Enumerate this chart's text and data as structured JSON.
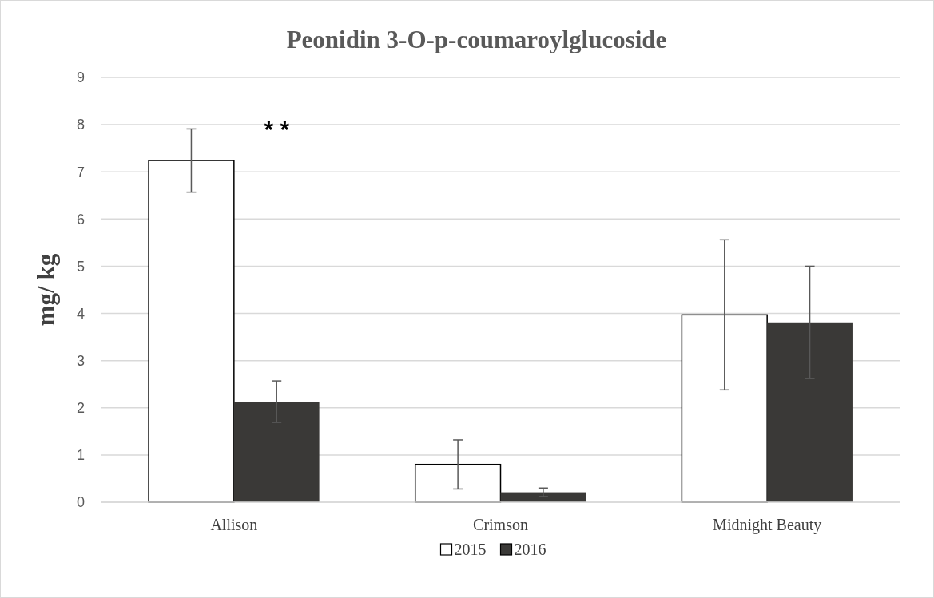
{
  "chart_data": {
    "type": "bar",
    "title": "Peonidin 3-O-p-coumaroylglucoside",
    "ylabel": "mg/ kg",
    "categories": [
      "Allison",
      "Crimson",
      "Midnight Beauty"
    ],
    "series": [
      {
        "name": "2015",
        "color": "#ffffff",
        "values": [
          7.24,
          0.8,
          3.97
        ],
        "errors": [
          0.67,
          0.52,
          1.59
        ]
      },
      {
        "name": "2016",
        "color": "#3a3937",
        "values": [
          2.13,
          0.21,
          3.81
        ],
        "errors": [
          0.44,
          0.09,
          1.19
        ]
      }
    ],
    "ylim": [
      0,
      9
    ],
    "yticks": [
      0,
      1,
      2,
      3,
      4,
      5,
      6,
      7,
      8,
      9
    ],
    "grid": "y",
    "legend": "bottom",
    "annotations": [
      "* *"
    ]
  }
}
